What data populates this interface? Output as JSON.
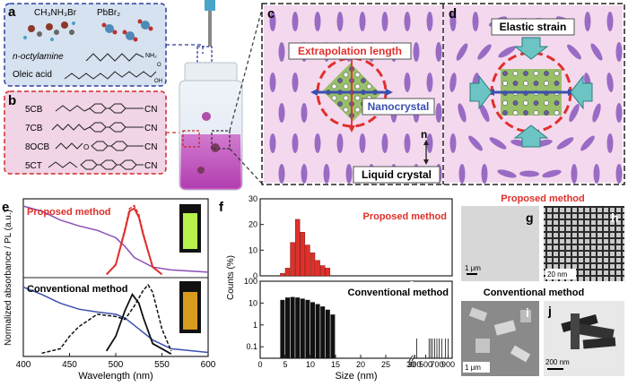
{
  "panels": {
    "a": "a",
    "b": "b",
    "c": "c",
    "d": "d",
    "e": "e",
    "f": "f",
    "g": "g",
    "h": "h",
    "i": "i",
    "j": "j"
  },
  "panel_a": {
    "reagent1": "CH₃NH₃Br",
    "reagent2": "PbBr₂",
    "ligand1": "n-octylamine",
    "ligand2": "Oleic acid",
    "nh2": "NH₂",
    "oh": "OH",
    "o": "O"
  },
  "panel_b": {
    "lc_names": [
      "5CB",
      "7CB",
      "8OCB",
      "5CT"
    ],
    "cn": "CN",
    "o": "O"
  },
  "panel_c": {
    "extrapolation": "Extrapolation length",
    "nanocrystal": "Nanocrystal",
    "liquid_crystal": "Liquid crystal",
    "n": "n"
  },
  "panel_d": {
    "elastic": "Elastic strain"
  },
  "panel_e": {
    "proposed": "Proposed method",
    "conventional": "Conventional method",
    "ylabel": "Normalized absorbance / PL (a.u.)",
    "xlabel": "Wavelength (nm)",
    "xticks": [
      "400",
      "450",
      "500",
      "550",
      "600"
    ]
  },
  "panel_f": {
    "proposed": "Proposed method",
    "conventional": "Conventional method",
    "ylabel": "Counts (%)",
    "xlabel": "Size (nm)",
    "top_yticks": [
      "0",
      "10",
      "20",
      "30"
    ],
    "bot_yticks": [
      "0.1",
      "1",
      "10",
      "100"
    ],
    "xticks": [
      "0",
      "5",
      "10",
      "15",
      "20",
      "25",
      "30",
      "300",
      "500",
      "700",
      "900"
    ]
  },
  "panel_ghij": {
    "proposed": "Proposed method",
    "conventional": "Conventional method",
    "scale_g": "1 μm",
    "scale_h": "20 nm",
    "scale_i": "1 μm",
    "scale_j": "200 nm"
  },
  "colors": {
    "blue_box": "#2e3f9e",
    "red_box": "#d02a2a",
    "lc_pink": "#f4d9ee",
    "ellipse": "#9a6bc4",
    "red": "#e0302a",
    "purple_line": "#8a4fb5",
    "blue_line": "#3b4fb0"
  },
  "chart_data": [
    {
      "type": "bar",
      "panel": "f-top",
      "title": "Proposed method",
      "ylabel": "Counts (%)",
      "xlabel": "Size (nm)",
      "ylim": [
        0,
        30
      ],
      "xlim": [
        0,
        30
      ],
      "x": [
        4.5,
        5.5,
        6.5,
        7.5,
        8.5,
        9.5,
        10.5,
        11.5,
        12.5,
        13.5
      ],
      "values": [
        1,
        3,
        13,
        22,
        17,
        12,
        9,
        6,
        4,
        3
      ]
    },
    {
      "type": "bar",
      "panel": "f-bottom",
      "title": "Conventional method",
      "yscale": "log",
      "ylim": [
        0.03,
        100
      ],
      "x": [
        4.5,
        5.5,
        6.5,
        7.5,
        8.5,
        9.5,
        10.5,
        11.5,
        12.5,
        13.5,
        14.5
      ],
      "values": [
        14,
        18,
        19,
        18,
        16,
        14,
        11,
        9,
        7,
        5,
        3
      ],
      "large_sizes": [
        340,
        560,
        590,
        620,
        660,
        700,
        740,
        790,
        850,
        900
      ]
    },
    {
      "type": "line",
      "panel": "e",
      "xlim": [
        400,
        600
      ],
      "series": [
        {
          "name": "Proposed absorbance",
          "x": [
            400,
            420,
            440,
            460,
            480,
            500,
            510,
            520,
            540,
            560,
            600
          ],
          "y": [
            0.95,
            0.88,
            0.76,
            0.68,
            0.62,
            0.52,
            0.4,
            0.25,
            0.12,
            0.08,
            0.05
          ]
        },
        {
          "name": "Proposed PL",
          "x": [
            490,
            500,
            510,
            515,
            520,
            525,
            530,
            540,
            550
          ],
          "y": [
            0.02,
            0.15,
            0.62,
            0.88,
            0.92,
            0.8,
            0.55,
            0.12,
            0.02
          ]
        },
        {
          "name": "Conventional absorbance",
          "x": [
            400,
            420,
            440,
            460,
            480,
            500,
            510,
            520,
            540,
            560,
            600
          ],
          "y": [
            0.92,
            0.82,
            0.7,
            0.62,
            0.58,
            0.55,
            0.5,
            0.4,
            0.2,
            0.08,
            0.03
          ]
        },
        {
          "name": "Conventional PL (solid)",
          "x": [
            490,
            500,
            510,
            518,
            525,
            530,
            540,
            560
          ],
          "y": [
            0.05,
            0.25,
            0.6,
            0.82,
            0.7,
            0.5,
            0.15,
            0.01
          ]
        },
        {
          "name": "Conventional PL (dashed)",
          "x": [
            420,
            440,
            450,
            460,
            480,
            500,
            510,
            520,
            530,
            535,
            540,
            550,
            560
          ],
          "y": [
            0.02,
            0.08,
            0.25,
            0.38,
            0.55,
            0.52,
            0.48,
            0.66,
            0.88,
            0.95,
            0.85,
            0.35,
            0.05
          ]
        }
      ]
    }
  ]
}
